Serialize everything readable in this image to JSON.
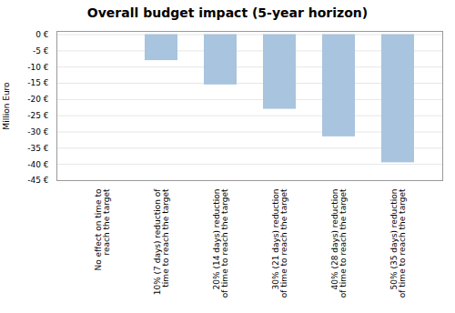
{
  "chart_data": {
    "type": "bar",
    "title": "Overall budget impact  (5-year horizon)",
    "y_label": "Million Euro",
    "categories": [
      "No effect on time to\nreach the target",
      "10% (7 days) reduction of\ntime to reach the target",
      "20% (14 days) reduction\nof time to reach the target",
      "30% (21 days) reduction\nof time to reach the target",
      "40% (28 days) reduction\nof time to reach the target",
      "50% (35 days) reduction\nof time to reach the target"
    ],
    "values": [
      0,
      -8.0,
      -15.5,
      -23.0,
      -31.5,
      -39.5
    ],
    "color": "#a8c4de",
    "ylim": [
      -45,
      1
    ],
    "yticks": [
      {
        "value": 0,
        "label": "0 €"
      },
      {
        "value": -5,
        "label": "-5 €"
      },
      {
        "value": -10,
        "label": "-10 €"
      },
      {
        "value": -15,
        "label": "-15 €"
      },
      {
        "value": -20,
        "label": "-20 €"
      },
      {
        "value": -25,
        "label": "-25 €"
      },
      {
        "value": -30,
        "label": "-30 €"
      },
      {
        "value": -35,
        "label": "-35 €"
      },
      {
        "value": -40,
        "label": "-40 €"
      },
      {
        "value": -45,
        "label": "-45 €"
      }
    ],
    "grid": true
  }
}
